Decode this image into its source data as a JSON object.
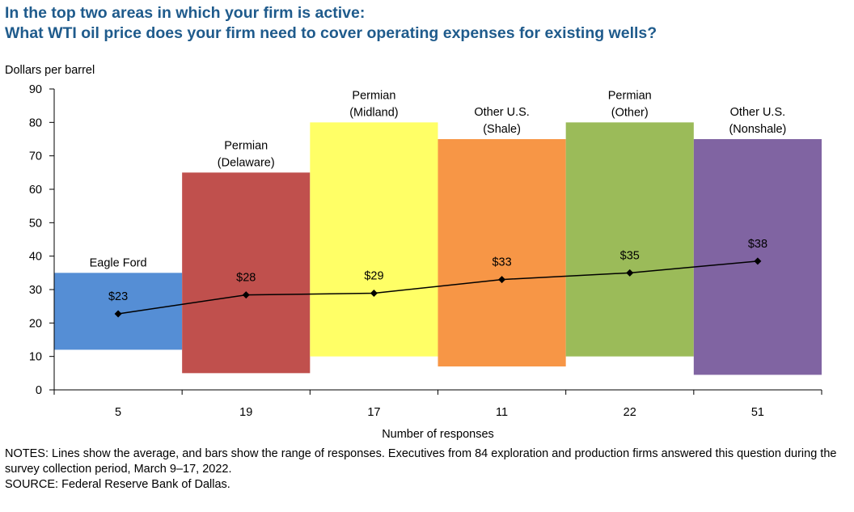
{
  "title_line1": "In the top two areas in which your firm is active:",
  "title_line2": "What WTI oil price does your firm need to cover operating expenses for existing wells?",
  "notes": "NOTES: Lines show the average, and bars show the range of responses. Executives from 84 exploration and production firms answered this question during the survey collection period, March 9–17, 2022.",
  "source": "SOURCE: Federal Reserve Bank of Dallas.",
  "chart_data": {
    "type": "bar",
    "title": "What WTI oil price does your firm need to cover operating expenses for existing wells?",
    "ylabel": "Dollars  per barrel",
    "xlabel": "Number  of responses",
    "ylim": [
      0,
      90
    ],
    "yticks": [
      0,
      10,
      20,
      30,
      40,
      50,
      60,
      70,
      80,
      90
    ],
    "categories": [
      {
        "name_lines": [
          "Eagle  Ford"
        ],
        "responses": "5",
        "low": 12,
        "high": 35,
        "average": 22.75,
        "avg_label": "$23",
        "color": "#558ed5"
      },
      {
        "name_lines": [
          "Permian",
          "(Delaware)"
        ],
        "responses": "19",
        "low": 5,
        "high": 65,
        "average": 28.4,
        "avg_label": "$28",
        "color": "#c0504d"
      },
      {
        "name_lines": [
          "Permian",
          "(Midland)"
        ],
        "responses": "17",
        "low": 10,
        "high": 80,
        "average": 28.9,
        "avg_label": "$29",
        "color": "#ffff66"
      },
      {
        "name_lines": [
          "Other  U.S.",
          "(Shale)"
        ],
        "responses": "11",
        "low": 7,
        "high": 75,
        "average": 33,
        "avg_label": "$33",
        "color": "#f79646"
      },
      {
        "name_lines": [
          "Permian",
          "(Other)"
        ],
        "responses": "22",
        "low": 10,
        "high": 80,
        "average": 35,
        "avg_label": "$35",
        "color": "#9bbb59"
      },
      {
        "name_lines": [
          "Other  U.S.",
          "(Nonshale)"
        ],
        "responses": "51",
        "low": 4.5,
        "high": 75,
        "average": 38.5,
        "avg_label": "$38",
        "color": "#8064a2"
      }
    ]
  }
}
